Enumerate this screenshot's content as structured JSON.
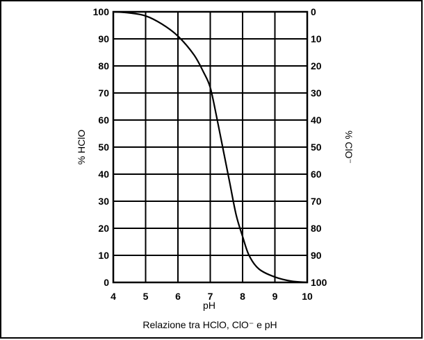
{
  "chart_data": {
    "type": "line",
    "title": "",
    "caption": "Relazione tra HClO, ClO⁻ e pH",
    "xlabel": "pH",
    "ylabel_left": "% HClO",
    "ylabel_right": "% ClO⁻",
    "xlim": [
      4,
      10
    ],
    "ylim_left": [
      0,
      100
    ],
    "ylim_right": [
      100,
      0
    ],
    "x_ticks": [
      4,
      5,
      6,
      7,
      8,
      9,
      10
    ],
    "y_ticks_left": [
      0,
      10,
      20,
      30,
      40,
      50,
      60,
      70,
      80,
      90,
      100
    ],
    "y_ticks_right": [
      100,
      90,
      80,
      70,
      60,
      50,
      40,
      30,
      20,
      10,
      0
    ],
    "grid": true,
    "series": [
      {
        "x": [
          4.0,
          4.5,
          5.0,
          5.5,
          6.0,
          6.5,
          6.8,
          7.0,
          7.2,
          7.4,
          7.6,
          7.8,
          8.0,
          8.2,
          8.5,
          9.0,
          9.5,
          10.0
        ],
        "y": [
          100,
          99.6,
          98.5,
          95.5,
          91,
          84,
          77.5,
          72,
          61,
          49,
          37,
          25,
          17,
          10,
          5,
          2,
          0.5,
          0
        ]
      }
    ]
  }
}
